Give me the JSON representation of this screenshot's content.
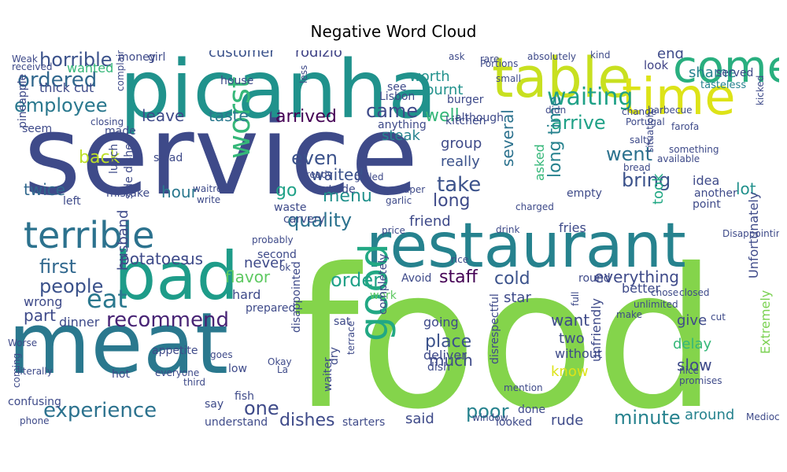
{
  "title": "Negative Word Cloud",
  "words": [
    {
      "t": "service",
      "c": "#3e4a89"
    },
    {
      "t": "food",
      "c": "#84d44b"
    },
    {
      "t": "picanha",
      "c": "#20928c"
    },
    {
      "t": "meat",
      "c": "#2a788e"
    },
    {
      "t": "restaurant",
      "c": "#26828e"
    },
    {
      "t": "table",
      "c": "#c8e020"
    },
    {
      "t": "time",
      "c": "#dde318"
    },
    {
      "t": "come",
      "c": "#29af7f"
    },
    {
      "t": "bad",
      "c": "#1e9c89"
    },
    {
      "t": "terrible",
      "c": "#2c728e"
    },
    {
      "t": "worst",
      "c": "#35b779"
    },
    {
      "t": "good",
      "c": "#22a884"
    },
    {
      "t": "experience",
      "c": "#2c728e"
    },
    {
      "t": "recommend",
      "c": "#482475"
    },
    {
      "t": "eat",
      "c": "#2a788e"
    },
    {
      "t": "ordered",
      "c": "#31688e"
    },
    {
      "t": "horrible",
      "c": "#3b528b"
    },
    {
      "t": "employee",
      "c": "#2a788e"
    },
    {
      "t": "waiting",
      "c": "#1fa187"
    },
    {
      "t": "arrive",
      "c": "#1fa187"
    },
    {
      "t": "came",
      "c": "#3e4a89"
    },
    {
      "t": "well",
      "c": "#35b779"
    },
    {
      "t": "arrived",
      "c": "#440154"
    },
    {
      "t": "taste",
      "c": "#2a788e"
    },
    {
      "t": "leave",
      "c": "#3e4a89"
    },
    {
      "t": "customer",
      "c": "#3b528b"
    },
    {
      "t": "rodizio",
      "c": "#414487"
    },
    {
      "t": "worth",
      "c": "#21918c"
    },
    {
      "t": "burnt",
      "c": "#21918c"
    },
    {
      "t": "end",
      "c": "#3e4a89"
    },
    {
      "t": "shame",
      "c": "#26828e"
    },
    {
      "t": "look",
      "c": "#414487"
    },
    {
      "t": "served",
      "c": "#3e4a89"
    },
    {
      "t": "tasteless",
      "c": "#26828e"
    },
    {
      "t": "wanted",
      "c": "#35b779"
    },
    {
      "t": "thick cut",
      "c": "#3e4a89"
    },
    {
      "t": "even",
      "c": "#3b528b"
    },
    {
      "t": "went",
      "c": "#2c728e"
    },
    {
      "t": "take",
      "c": "#3b528b"
    },
    {
      "t": "bring",
      "c": "#3b528b"
    },
    {
      "t": "long time",
      "c": "#26828e"
    },
    {
      "t": "long",
      "c": "#3e4a89"
    },
    {
      "t": "group",
      "c": "#3e4a89"
    },
    {
      "t": "really",
      "c": "#3b528b"
    },
    {
      "t": "several",
      "c": "#2c728e"
    },
    {
      "t": "asked",
      "c": "#35b779"
    },
    {
      "t": "steak",
      "c": "#26828e"
    },
    {
      "t": "menu",
      "c": "#21918c"
    },
    {
      "t": "quality",
      "c": "#2c728e"
    },
    {
      "t": "waited",
      "c": "#3b528b"
    },
    {
      "t": "back",
      "c": "#bddf26"
    },
    {
      "t": "twice",
      "c": "#31688e"
    },
    {
      "t": "hour",
      "c": "#2a788e"
    },
    {
      "t": "go",
      "c": "#1fa187"
    },
    {
      "t": "lot",
      "c": "#21918c"
    },
    {
      "t": "took",
      "c": "#22a884"
    },
    {
      "t": "first",
      "c": "#31688e"
    },
    {
      "t": "people",
      "c": "#3b528b"
    },
    {
      "t": "order",
      "c": "#1fa187"
    },
    {
      "t": "staff",
      "c": "#440154"
    },
    {
      "t": "cold",
      "c": "#3b528b"
    },
    {
      "t": "everything",
      "c": "#3e4a89"
    },
    {
      "t": "friend",
      "c": "#3e4a89"
    },
    {
      "t": "fries",
      "c": "#3e4a89"
    },
    {
      "t": "us",
      "c": "#3e4a89"
    },
    {
      "t": "potatoes",
      "c": "#3e4a89"
    },
    {
      "t": "never",
      "c": "#3e4a89"
    },
    {
      "t": "flavor",
      "c": "#5ec962"
    },
    {
      "t": "star",
      "c": "#3e4a89"
    },
    {
      "t": "better",
      "c": "#3e4a89"
    },
    {
      "t": "want",
      "c": "#3e4a89"
    },
    {
      "t": "two",
      "c": "#3e4a89"
    },
    {
      "t": "without",
      "c": "#3e4a89"
    },
    {
      "t": "know",
      "c": "#dde318"
    },
    {
      "t": "slow",
      "c": "#3e4a89"
    },
    {
      "t": "delay",
      "c": "#35b779"
    },
    {
      "t": "give",
      "c": "#3e4a89"
    },
    {
      "t": "place",
      "c": "#3b528b"
    },
    {
      "t": "much",
      "c": "#3e4a89"
    },
    {
      "t": "going",
      "c": "#3e4a89"
    },
    {
      "t": "deliver",
      "c": "#3e4a89"
    },
    {
      "t": "poor",
      "c": "#26828e"
    },
    {
      "t": "minute",
      "c": "#26828e"
    },
    {
      "t": "rude",
      "c": "#3e4a89"
    },
    {
      "t": "around",
      "c": "#26828e"
    },
    {
      "t": "one",
      "c": "#3e4a89"
    },
    {
      "t": "dishes",
      "c": "#3e4a89"
    },
    {
      "t": "said",
      "c": "#3e4a89"
    },
    {
      "t": "part",
      "c": "#3e4a89"
    },
    {
      "t": "dinner",
      "c": "#3e4a89"
    },
    {
      "t": "wrong",
      "c": "#3e4a89"
    },
    {
      "t": "hard",
      "c": "#3e4a89"
    },
    {
      "t": "work",
      "c": "#5ec962"
    },
    {
      "t": "prepared",
      "c": "#3e4a89"
    },
    {
      "t": "unfriendly",
      "c": "#3e4a89"
    },
    {
      "t": "Extremely",
      "c": "#7ad151"
    },
    {
      "t": "Unfortunately",
      "c": "#3e4a89"
    },
    {
      "t": "husband",
      "c": "#3e4a89"
    },
    {
      "t": "Avoid",
      "c": "#3e4a89"
    },
    {
      "t": "understand",
      "c": "#3e4a89"
    },
    {
      "t": "starters",
      "c": "#3e4a89"
    },
    {
      "t": "looked",
      "c": "#3e4a89"
    },
    {
      "t": "say",
      "c": "#3e4a89"
    },
    {
      "t": "fish",
      "c": "#3e4a89"
    },
    {
      "t": "low",
      "c": "#3e4a89"
    },
    {
      "t": "hot",
      "c": "#3e4a89"
    },
    {
      "t": "confusing",
      "c": "#3e4a89"
    },
    {
      "t": "appetite",
      "c": "#3e4a89"
    },
    {
      "t": "La",
      "c": "#3e4a89"
    },
    {
      "t": "Okay",
      "c": "#3e4a89"
    },
    {
      "t": "waiter",
      "c": "#3e4a89"
    },
    {
      "t": "dry",
      "c": "#3e4a89"
    },
    {
      "t": "sat",
      "c": "#3e4a89"
    },
    {
      "t": "terrace",
      "c": "#3e4a89"
    },
    {
      "t": "disappointed",
      "c": "#3e4a89"
    },
    {
      "t": "completely",
      "c": "#3e4a89"
    },
    {
      "t": "disrespectful",
      "c": "#3e4a89"
    },
    {
      "t": "dish",
      "c": "#3e4a89"
    },
    {
      "t": "done",
      "c": "#3e4a89"
    },
    {
      "t": "salad",
      "c": "#3e4a89"
    },
    {
      "t": "lunch",
      "c": "#3e4a89"
    },
    {
      "t": "side dishes",
      "c": "#3e4a89"
    },
    {
      "t": "waitress",
      "c": "#3e4a89"
    },
    {
      "t": "write",
      "c": "#3e4a89"
    },
    {
      "t": "left",
      "c": "#3e4a89"
    },
    {
      "t": "mistake",
      "c": "#3e4a89"
    },
    {
      "t": "made",
      "c": "#3e4a89"
    },
    {
      "t": "seem",
      "c": "#3e4a89"
    },
    {
      "t": "pineapple",
      "c": "#3e4a89"
    },
    {
      "t": "outside",
      "c": "#3e4a89"
    },
    {
      "t": "waste",
      "c": "#3e4a89"
    },
    {
      "t": "carvery",
      "c": "#3e4a89"
    },
    {
      "t": "second",
      "c": "#3e4a89"
    },
    {
      "t": "probably",
      "c": "#3e4a89"
    },
    {
      "t": "ok",
      "c": "#3e4a89"
    },
    {
      "t": "kitchen",
      "c": "#3e4a89"
    },
    {
      "t": "anything",
      "c": "#3e4a89"
    },
    {
      "t": "although",
      "c": "#3e4a89"
    },
    {
      "t": "burger",
      "c": "#3e4a89"
    },
    {
      "t": "see",
      "c": "#3e4a89"
    },
    {
      "t": "Lisbon",
      "c": "#3e4a89"
    },
    {
      "t": "ask",
      "c": "#3e4a89"
    },
    {
      "t": "money",
      "c": "#3e4a89"
    },
    {
      "t": "girl",
      "c": "#3e4a89"
    },
    {
      "t": "house",
      "c": "#3e4a89"
    },
    {
      "t": "Weak",
      "c": "#3e4a89"
    },
    {
      "t": "received",
      "c": "#3e4a89"
    },
    {
      "t": "closing",
      "c": "#3e4a89"
    },
    {
      "t": "complaint",
      "c": "#3e4a89"
    },
    {
      "t": "less",
      "c": "#3e4a89"
    },
    {
      "t": "rare",
      "c": "#3e4a89"
    },
    {
      "t": "small",
      "c": "#3e4a89"
    },
    {
      "t": "Portions",
      "c": "#3e4a89"
    },
    {
      "t": "absolutely",
      "c": "#3e4a89"
    },
    {
      "t": "kind",
      "c": "#3e4a89"
    },
    {
      "t": "didn",
      "c": "#3e4a89"
    },
    {
      "t": "barbecue",
      "c": "#3e4a89"
    },
    {
      "t": "situation",
      "c": "#3e4a89"
    },
    {
      "t": "change",
      "c": "#3e4a89"
    },
    {
      "t": "Portugal",
      "c": "#3e4a89"
    },
    {
      "t": "farofa",
      "c": "#3e4a89"
    },
    {
      "t": "salty",
      "c": "#3e4a89"
    },
    {
      "t": "something",
      "c": "#3e4a89"
    },
    {
      "t": "available",
      "c": "#3e4a89"
    },
    {
      "t": "kicked",
      "c": "#3e4a89"
    },
    {
      "t": "idea",
      "c": "#3e4a89"
    },
    {
      "t": "bread",
      "c": "#3e4a89"
    },
    {
      "t": "another",
      "c": "#3e4a89"
    },
    {
      "t": "point",
      "c": "#3e4a89"
    },
    {
      "t": "empty",
      "c": "#3e4a89"
    },
    {
      "t": "charged",
      "c": "#3e4a89"
    },
    {
      "t": "Disappointing",
      "c": "#3e4a89"
    },
    {
      "t": "drink",
      "c": "#3e4a89"
    },
    {
      "t": "garlic",
      "c": "#3e4a89"
    },
    {
      "t": "Super",
      "c": "#3e4a89"
    },
    {
      "t": "grilled",
      "c": "#3e4a89"
    },
    {
      "t": "already",
      "c": "#3e4a89"
    },
    {
      "t": "price",
      "c": "#3e4a89"
    },
    {
      "t": "rice",
      "c": "#3e4a89"
    },
    {
      "t": "round",
      "c": "#3e4a89"
    },
    {
      "t": "chose",
      "c": "#3e4a89"
    },
    {
      "t": "make",
      "c": "#3e4a89"
    },
    {
      "t": "unlimited",
      "c": "#3e4a89"
    },
    {
      "t": "cut",
      "c": "#3e4a89"
    },
    {
      "t": "closed",
      "c": "#3e4a89"
    },
    {
      "t": "full",
      "c": "#3e4a89"
    },
    {
      "t": "nice",
      "c": "#3e4a89"
    },
    {
      "t": "promises",
      "c": "#3e4a89"
    },
    {
      "t": "Mediocre",
      "c": "#3e4a89"
    },
    {
      "t": "mention",
      "c": "#3e4a89"
    },
    {
      "t": "window",
      "c": "#3e4a89"
    },
    {
      "t": "goes",
      "c": "#3e4a89"
    },
    {
      "t": "everyone",
      "c": "#3e4a89"
    },
    {
      "t": "third",
      "c": "#3e4a89"
    },
    {
      "t": "coming",
      "c": "#3e4a89"
    },
    {
      "t": "phone",
      "c": "#3e4a89"
    },
    {
      "t": "literally",
      "c": "#3e4a89"
    },
    {
      "t": "Worse",
      "c": "#3e4a89"
    }
  ]
}
